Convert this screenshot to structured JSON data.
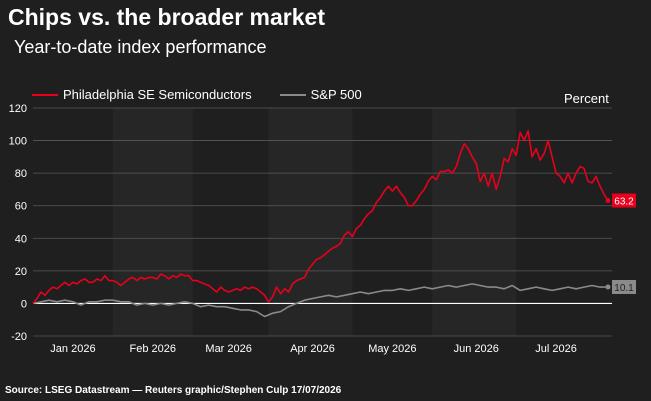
{
  "title": "Chips vs. the broader market",
  "subtitle": "Year-to-date index performance",
  "unit_label": "Percent",
  "source": "Source: LSEG Datastream — Reuters graphic/Stephen Culp 17/07/2026",
  "colors": {
    "sox": "#e8001c",
    "spx": "#8a8a8a",
    "grid": "#5a5a5a",
    "zero": "#ffffff",
    "background": "#1f1f1f",
    "band": "#262626"
  },
  "chart_data": {
    "type": "line",
    "title": "Chips vs. the broader market",
    "subtitle": "Year-to-date index performance",
    "ylabel": "Percent",
    "ylim": [
      -20,
      120
    ],
    "yticks": [
      -20,
      0,
      20,
      40,
      60,
      80,
      100,
      120
    ],
    "xlim": [
      0,
      140
    ],
    "xtick_labels": [
      {
        "label": "Jan 2026",
        "pos": 10
      },
      {
        "label": "Feb 2026",
        "pos": 30
      },
      {
        "label": "Mar 2026",
        "pos": 49
      },
      {
        "label": "Apr 2026",
        "pos": 70
      },
      {
        "label": "May 2026",
        "pos": 90
      },
      {
        "label": "Jun 2026",
        "pos": 111
      },
      {
        "label": "Jul 2026",
        "pos": 131
      }
    ],
    "grid": true,
    "legend_placement": "top-left",
    "series": [
      {
        "name": "Philadelphia SE Semiconductors",
        "color": "#e8001c",
        "end_label": "63.2",
        "points": [
          [
            0,
            0
          ],
          [
            1,
            3
          ],
          [
            2,
            7
          ],
          [
            3,
            5
          ],
          [
            4,
            8
          ],
          [
            5,
            10
          ],
          [
            6,
            9
          ],
          [
            7,
            11
          ],
          [
            8,
            13
          ],
          [
            9,
            11
          ],
          [
            10,
            13
          ],
          [
            11,
            12
          ],
          [
            12,
            14
          ],
          [
            13,
            15
          ],
          [
            14,
            13
          ],
          [
            15,
            13
          ],
          [
            16,
            15
          ],
          [
            17,
            14
          ],
          [
            18,
            17
          ],
          [
            19,
            14
          ],
          [
            20,
            14
          ],
          [
            21,
            13
          ],
          [
            22,
            11
          ],
          [
            23,
            13
          ],
          [
            24,
            15
          ],
          [
            25,
            16
          ],
          [
            26,
            14
          ],
          [
            27,
            16
          ],
          [
            28,
            15
          ],
          [
            29,
            16
          ],
          [
            30,
            16
          ],
          [
            31,
            15
          ],
          [
            32,
            18
          ],
          [
            33,
            17
          ],
          [
            34,
            15
          ],
          [
            35,
            17
          ],
          [
            36,
            16
          ],
          [
            37,
            18
          ],
          [
            38,
            17
          ],
          [
            39,
            17
          ],
          [
            40,
            14
          ],
          [
            41,
            14
          ],
          [
            42,
            13
          ],
          [
            43,
            12
          ],
          [
            44,
            11
          ],
          [
            45,
            9
          ],
          [
            46,
            7
          ],
          [
            47,
            10
          ],
          [
            48,
            8
          ],
          [
            49,
            7
          ],
          [
            50,
            8
          ],
          [
            51,
            9
          ],
          [
            52,
            8
          ],
          [
            53,
            10
          ],
          [
            54,
            9
          ],
          [
            55,
            10
          ],
          [
            56,
            9
          ],
          [
            57,
            7
          ],
          [
            58,
            5
          ],
          [
            59,
            1
          ],
          [
            60,
            4
          ],
          [
            61,
            10
          ],
          [
            62,
            6
          ],
          [
            63,
            9
          ],
          [
            64,
            7
          ],
          [
            65,
            12
          ],
          [
            66,
            14
          ],
          [
            67,
            15
          ],
          [
            68,
            16
          ],
          [
            69,
            21
          ],
          [
            70,
            24
          ],
          [
            71,
            27
          ],
          [
            72,
            28
          ],
          [
            73,
            30
          ],
          [
            74,
            32
          ],
          [
            75,
            34
          ],
          [
            76,
            35
          ],
          [
            77,
            37
          ],
          [
            78,
            42
          ],
          [
            79,
            44
          ],
          [
            80,
            41
          ],
          [
            81,
            46
          ],
          [
            82,
            48
          ],
          [
            83,
            52
          ],
          [
            84,
            55
          ],
          [
            85,
            57
          ],
          [
            86,
            62
          ],
          [
            87,
            65
          ],
          [
            88,
            69
          ],
          [
            89,
            72
          ],
          [
            90,
            69
          ],
          [
            91,
            72
          ],
          [
            92,
            68
          ],
          [
            93,
            65
          ],
          [
            94,
            60
          ],
          [
            95,
            60
          ],
          [
            96,
            63
          ],
          [
            97,
            67
          ],
          [
            98,
            70
          ],
          [
            99,
            75
          ],
          [
            100,
            78
          ],
          [
            101,
            76
          ],
          [
            102,
            81
          ],
          [
            103,
            81
          ],
          [
            104,
            82
          ],
          [
            105,
            80
          ],
          [
            106,
            84
          ],
          [
            107,
            92
          ],
          [
            108,
            98
          ],
          [
            109,
            95
          ],
          [
            110,
            90
          ],
          [
            111,
            86
          ],
          [
            112,
            75
          ],
          [
            113,
            80
          ],
          [
            114,
            72
          ],
          [
            115,
            80
          ],
          [
            116,
            70
          ],
          [
            117,
            78
          ],
          [
            118,
            89
          ],
          [
            119,
            87
          ],
          [
            120,
            95
          ],
          [
            121,
            91
          ],
          [
            122,
            105
          ],
          [
            123,
            100
          ],
          [
            124,
            106
          ],
          [
            125,
            90
          ],
          [
            126,
            95
          ],
          [
            127,
            88
          ],
          [
            128,
            92
          ],
          [
            129,
            100
          ],
          [
            130,
            90
          ],
          [
            131,
            80
          ],
          [
            132,
            78
          ],
          [
            133,
            74
          ],
          [
            134,
            80
          ],
          [
            135,
            74
          ],
          [
            136,
            80
          ],
          [
            137,
            84
          ],
          [
            138,
            83
          ],
          [
            139,
            75
          ],
          [
            140,
            74
          ],
          [
            141,
            78
          ],
          [
            142,
            72
          ],
          [
            143,
            67
          ],
          [
            144,
            63.2
          ]
        ]
      },
      {
        "name": "S&P 500",
        "color": "#8a8a8a",
        "end_label": "10.1",
        "points": [
          [
            0,
            0
          ],
          [
            2,
            1
          ],
          [
            4,
            2
          ],
          [
            6,
            1
          ],
          [
            8,
            2
          ],
          [
            10,
            1
          ],
          [
            12,
            -1
          ],
          [
            14,
            1
          ],
          [
            16,
            1
          ],
          [
            18,
            2
          ],
          [
            20,
            2
          ],
          [
            22,
            1
          ],
          [
            24,
            1
          ],
          [
            26,
            -1
          ],
          [
            28,
            0
          ],
          [
            30,
            -1
          ],
          [
            32,
            0
          ],
          [
            34,
            -1
          ],
          [
            36,
            0
          ],
          [
            38,
            1
          ],
          [
            40,
            0
          ],
          [
            42,
            -2
          ],
          [
            44,
            -1
          ],
          [
            46,
            -2
          ],
          [
            48,
            -2
          ],
          [
            50,
            -3
          ],
          [
            52,
            -4
          ],
          [
            54,
            -4
          ],
          [
            56,
            -5
          ],
          [
            58,
            -8
          ],
          [
            60,
            -6
          ],
          [
            62,
            -5
          ],
          [
            64,
            -2
          ],
          [
            66,
            0
          ],
          [
            68,
            2
          ],
          [
            70,
            3
          ],
          [
            72,
            4
          ],
          [
            74,
            5
          ],
          [
            76,
            4
          ],
          [
            78,
            5
          ],
          [
            80,
            6
          ],
          [
            82,
            7
          ],
          [
            84,
            6
          ],
          [
            86,
            7
          ],
          [
            88,
            8
          ],
          [
            90,
            8
          ],
          [
            92,
            9
          ],
          [
            94,
            8
          ],
          [
            96,
            9
          ],
          [
            98,
            10
          ],
          [
            100,
            9
          ],
          [
            102,
            10
          ],
          [
            104,
            11
          ],
          [
            106,
            10
          ],
          [
            108,
            11
          ],
          [
            110,
            12
          ],
          [
            112,
            11
          ],
          [
            114,
            10
          ],
          [
            116,
            10
          ],
          [
            118,
            9
          ],
          [
            120,
            11
          ],
          [
            122,
            8
          ],
          [
            124,
            9
          ],
          [
            126,
            10
          ],
          [
            128,
            9
          ],
          [
            130,
            8
          ],
          [
            132,
            9
          ],
          [
            134,
            10
          ],
          [
            136,
            9
          ],
          [
            138,
            10
          ],
          [
            140,
            11
          ],
          [
            142,
            10
          ],
          [
            144,
            10.1
          ]
        ]
      }
    ]
  }
}
